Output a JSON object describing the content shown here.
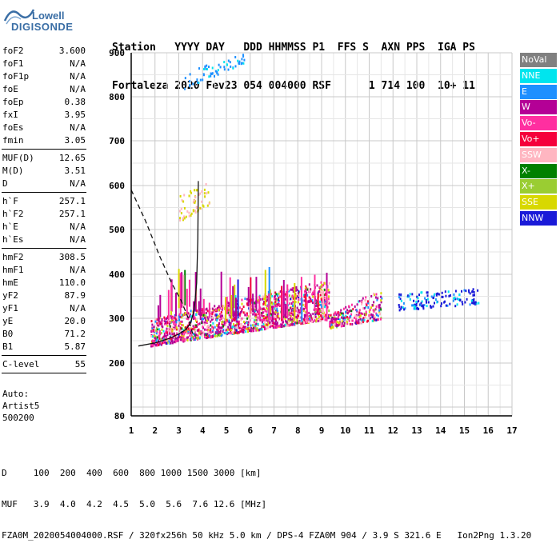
{
  "logo": {
    "line1": "Lowell",
    "line2": "DIGISONDE"
  },
  "header": {
    "labels_line": "Station   YYYY DAY   DDD HHMMSS P1  FFS S  AXN PPS  IGA PS",
    "values_line": "Fortaleza 2020 Fev23 054 004000 RSF      1 714 100  10+ 11"
  },
  "params": {
    "group1": [
      {
        "k": "foF2",
        "v": "3.600"
      },
      {
        "k": "foF1",
        "v": "N/A"
      },
      {
        "k": "foF1p",
        "v": "N/A"
      },
      {
        "k": "foE",
        "v": "N/A"
      },
      {
        "k": "foEp",
        "v": "0.38"
      },
      {
        "k": "fxI",
        "v": "3.95"
      },
      {
        "k": "foEs",
        "v": "N/A"
      },
      {
        "k": "fmin",
        "v": "3.05"
      }
    ],
    "group2": [
      {
        "k": "MUF(D)",
        "v": "12.65"
      },
      {
        "k": "M(D)",
        "v": "3.51"
      },
      {
        "k": "D",
        "v": "N/A"
      }
    ],
    "group3": [
      {
        "k": "h`F",
        "v": "257.1"
      },
      {
        "k": "h`F2",
        "v": "257.1"
      },
      {
        "k": "h`E",
        "v": "N/A"
      },
      {
        "k": "h`Es",
        "v": "N/A"
      }
    ],
    "group4": [
      {
        "k": "hmF2",
        "v": "308.5"
      },
      {
        "k": "hmF1",
        "v": "N/A"
      },
      {
        "k": "hmE",
        "v": "110.0"
      },
      {
        "k": "yF2",
        "v": "87.9"
      },
      {
        "k": "yF1",
        "v": "N/A"
      },
      {
        "k": "yE",
        "v": "20.0"
      },
      {
        "k": "B0",
        "v": "71.2"
      },
      {
        "k": "B1",
        "v": "5.87"
      }
    ],
    "group5": [
      {
        "k": "C-level",
        "v": "55"
      }
    ]
  },
  "auto": {
    "line1": "Auto:",
    "line2": "Artist5",
    "line3": "500200"
  },
  "legend": [
    {
      "label": "NoVal",
      "color": "#808080"
    },
    {
      "label": "NNE",
      "color": "#00e5ee"
    },
    {
      "label": "E",
      "color": "#1e90ff"
    },
    {
      "label": "W",
      "color": "#b40096"
    },
    {
      "label": "Vo-",
      "color": "#ff2fa0"
    },
    {
      "label": "Vo+",
      "color": "#f5003c"
    },
    {
      "label": "SSW",
      "color": "#ffb6c1"
    },
    {
      "label": "X-",
      "color": "#008000"
    },
    {
      "label": "X+",
      "color": "#9acd32"
    },
    {
      "label": "SSE",
      "color": "#d8d800"
    },
    {
      "label": "NNW",
      "color": "#1a1ad8"
    }
  ],
  "footer": {
    "line1": "D     100  200  400  600  800 1000 1500 3000 [km]",
    "line2": "MUF   3.9  4.0  4.2  4.5  5.0  5.6  7.6 12.6 [MHz]",
    "line3": "FZA0M_2020054004000.RSF / 320fx256h 50 kHz 5.0 km / DPS-4 FZA0M 904 / 3.9 S 321.6 E   Ion2Png 1.3.20"
  },
  "chart_data": {
    "type": "scatter",
    "title": "",
    "xlabel": "",
    "ylabel": "",
    "xlim": [
      1,
      17
    ],
    "ylim": [
      80,
      900
    ],
    "xticks": [
      "1",
      "2",
      "3",
      "4",
      "5",
      "6",
      "7",
      "8",
      "9",
      "10",
      "11",
      "12",
      "13",
      "14",
      "15",
      "16",
      "17"
    ],
    "yticks": [
      "80",
      "200",
      "300",
      "400",
      "500",
      "600",
      "700",
      "800",
      "900"
    ],
    "grid": true,
    "echo_regions": [
      {
        "name": "F-trace main",
        "x": [
          1.8,
          9.3
        ],
        "y_low": [
          240,
          300
        ],
        "y_high": [
          300,
          390
        ]
      },
      {
        "name": "F-trace tail",
        "x": [
          9.3,
          11.5
        ],
        "y_low": [
          280,
          300
        ],
        "y_high": [
          310,
          370
        ]
      },
      {
        "name": "F-trace high band",
        "x": [
          12.2,
          15.6
        ],
        "y_low": [
          320,
          335
        ],
        "y_high": [
          360,
          370
        ]
      },
      {
        "name": "multihop echoes",
        "x": [
          3.0,
          4.3
        ],
        "y_low": [
          520,
          560
        ],
        "y_high": [
          580,
          610
        ]
      },
      {
        "name": "upper E echoes",
        "x": [
          3.2,
          5.8
        ],
        "y_low": [
          820,
          880
        ],
        "y_high": [
          860,
          900
        ]
      }
    ],
    "profile_curves": [
      {
        "name": "dashed profile",
        "style": "dashed",
        "x": [
          1.0,
          1.6,
          2.2,
          2.7,
          3.1,
          3.4,
          3.6
        ],
        "y": [
          590,
          520,
          440,
          380,
          340,
          300,
          262
        ]
      },
      {
        "name": "solid trace",
        "style": "solid",
        "x": [
          1.3,
          2.0,
          2.6,
          3.0,
          3.3,
          3.5,
          3.65,
          3.75,
          3.8,
          3.82
        ],
        "y": [
          238,
          245,
          255,
          265,
          275,
          290,
          320,
          380,
          480,
          610
        ]
      }
    ]
  }
}
